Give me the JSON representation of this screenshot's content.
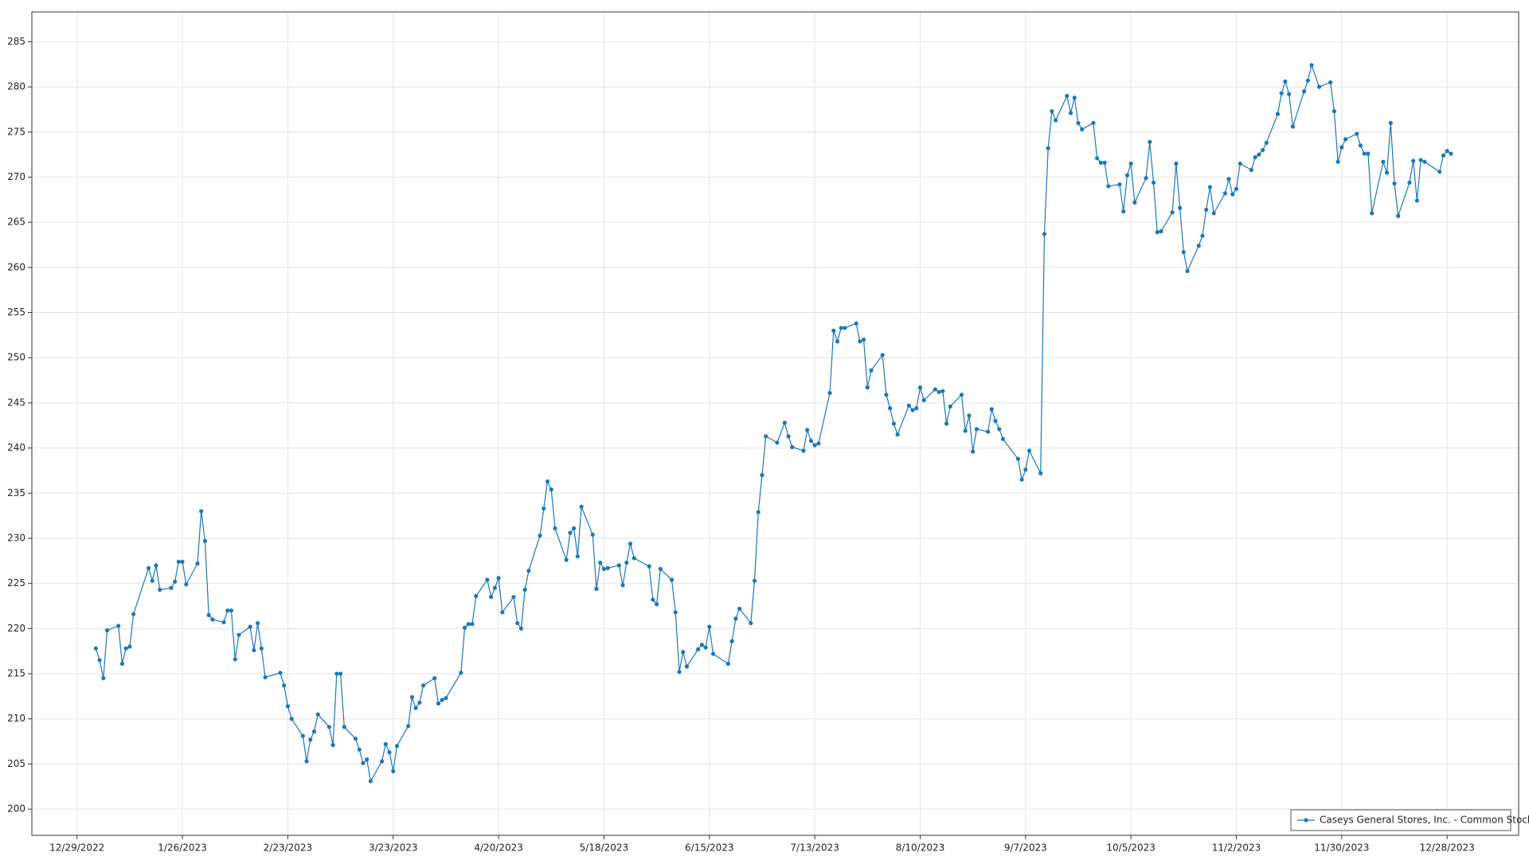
{
  "chart_data": {
    "type": "line",
    "x": [
      "1/3/2023",
      "1/4/2023",
      "1/5/2023",
      "1/6/2023",
      "1/9/2023",
      "1/10/2023",
      "1/11/2023",
      "1/12/2023",
      "1/13/2023",
      "1/17/2023",
      "1/18/2023",
      "1/19/2023",
      "1/20/2023",
      "1/23/2023",
      "1/24/2023",
      "1/25/2023",
      "1/26/2023",
      "1/27/2023",
      "1/30/2023",
      "1/31/2023",
      "2/1/2023",
      "2/2/2023",
      "2/3/2023",
      "2/6/2023",
      "2/7/2023",
      "2/8/2023",
      "2/9/2023",
      "2/10/2023",
      "2/13/2023",
      "2/14/2023",
      "2/15/2023",
      "2/16/2023",
      "2/17/2023",
      "2/21/2023",
      "2/22/2023",
      "2/23/2023",
      "2/24/2023",
      "2/27/2023",
      "2/28/2023",
      "3/1/2023",
      "3/2/2023",
      "3/3/2023",
      "3/6/2023",
      "3/7/2023",
      "3/8/2023",
      "3/9/2023",
      "3/10/2023",
      "3/13/2023",
      "3/14/2023",
      "3/15/2023",
      "3/16/2023",
      "3/17/2023",
      "3/20/2023",
      "3/21/2023",
      "3/22/2023",
      "3/23/2023",
      "3/24/2023",
      "3/27/2023",
      "3/28/2023",
      "3/29/2023",
      "3/30/2023",
      "3/31/2023",
      "4/3/2023",
      "4/4/2023",
      "4/5/2023",
      "4/6/2023",
      "4/10/2023",
      "4/11/2023",
      "4/12/2023",
      "4/13/2023",
      "4/14/2023",
      "4/17/2023",
      "4/18/2023",
      "4/19/2023",
      "4/20/2023",
      "4/21/2023",
      "4/24/2023",
      "4/25/2023",
      "4/26/2023",
      "4/27/2023",
      "4/28/2023",
      "5/1/2023",
      "5/2/2023",
      "5/3/2023",
      "5/4/2023",
      "5/5/2023",
      "5/8/2023",
      "5/9/2023",
      "5/10/2023",
      "5/11/2023",
      "5/12/2023",
      "5/15/2023",
      "5/16/2023",
      "5/17/2023",
      "5/18/2023",
      "5/19/2023",
      "5/22/2023",
      "5/23/2023",
      "5/24/2023",
      "5/25/2023",
      "5/26/2023",
      "5/30/2023",
      "5/31/2023",
      "6/1/2023",
      "6/2/2023",
      "6/5/2023",
      "6/6/2023",
      "6/7/2023",
      "6/8/2023",
      "6/9/2023",
      "6/12/2023",
      "6/13/2023",
      "6/14/2023",
      "6/15/2023",
      "6/16/2023",
      "6/20/2023",
      "6/21/2023",
      "6/22/2023",
      "6/23/2023",
      "6/26/2023",
      "6/27/2023",
      "6/28/2023",
      "6/29/2023",
      "6/30/2023",
      "7/3/2023",
      "7/5/2023",
      "7/6/2023",
      "7/7/2023",
      "7/10/2023",
      "7/11/2023",
      "7/12/2023",
      "7/13/2023",
      "7/14/2023",
      "7/17/2023",
      "7/18/2023",
      "7/19/2023",
      "7/20/2023",
      "7/21/2023",
      "7/24/2023",
      "7/25/2023",
      "7/26/2023",
      "7/27/2023",
      "7/28/2023",
      "7/31/2023",
      "8/1/2023",
      "8/2/2023",
      "8/3/2023",
      "8/4/2023",
      "8/7/2023",
      "8/8/2023",
      "8/9/2023",
      "8/10/2023",
      "8/11/2023",
      "8/14/2023",
      "8/15/2023",
      "8/16/2023",
      "8/17/2023",
      "8/18/2023",
      "8/21/2023",
      "8/22/2023",
      "8/23/2023",
      "8/24/2023",
      "8/25/2023",
      "8/28/2023",
      "8/29/2023",
      "8/30/2023",
      "8/31/2023",
      "9/1/2023",
      "9/5/2023",
      "9/6/2023",
      "9/7/2023",
      "9/8/2023",
      "9/11/2023",
      "9/12/2023",
      "9/13/2023",
      "9/14/2023",
      "9/15/2023",
      "9/18/2023",
      "9/19/2023",
      "9/20/2023",
      "9/21/2023",
      "9/22/2023",
      "9/25/2023",
      "9/26/2023",
      "9/27/2023",
      "9/28/2023",
      "9/29/2023",
      "10/2/2023",
      "10/3/2023",
      "10/4/2023",
      "10/5/2023",
      "10/6/2023",
      "10/9/2023",
      "10/10/2023",
      "10/11/2023",
      "10/12/2023",
      "10/13/2023",
      "10/16/2023",
      "10/17/2023",
      "10/18/2023",
      "10/19/2023",
      "10/20/2023",
      "10/23/2023",
      "10/24/2023",
      "10/25/2023",
      "10/26/2023",
      "10/27/2023",
      "10/30/2023",
      "10/31/2023",
      "11/1/2023",
      "11/2/2023",
      "11/3/2023",
      "11/6/2023",
      "11/7/2023",
      "11/8/2023",
      "11/9/2023",
      "11/10/2023",
      "11/13/2023",
      "11/14/2023",
      "11/15/2023",
      "11/16/2023",
      "11/17/2023",
      "11/20/2023",
      "11/21/2023",
      "11/22/2023",
      "11/24/2023",
      "11/27/2023",
      "11/28/2023",
      "11/29/2023",
      "11/30/2023",
      "12/1/2023",
      "12/4/2023",
      "12/5/2023",
      "12/6/2023",
      "12/7/2023",
      "12/8/2023",
      "12/11/2023",
      "12/12/2023",
      "12/13/2023",
      "12/14/2023",
      "12/15/2023",
      "12/18/2023",
      "12/19/2023",
      "12/20/2023",
      "12/21/2023",
      "12/22/2023",
      "12/26/2023",
      "12/27/2023",
      "12/28/2023",
      "12/29/2023"
    ],
    "series": [
      {
        "name": "Caseys General Stores, Inc. - Common Stock",
        "color": "#1f77b4",
        "values": [
          217.8,
          216.5,
          214.5,
          219.8,
          220.3,
          216.1,
          217.8,
          218,
          221.6,
          226.7,
          225.3,
          227,
          224.3,
          224.5,
          225.2,
          227.4,
          227.4,
          224.9,
          227.2,
          233,
          229.7,
          221.5,
          221,
          220.7,
          222,
          222,
          216.6,
          219.3,
          220.2,
          217.6,
          220.6,
          217.8,
          214.6,
          215.1,
          213.7,
          211.4,
          210,
          208.1,
          205.3,
          207.7,
          208.6,
          210.5,
          209.1,
          207.1,
          215,
          215,
          209.1,
          207.8,
          206.6,
          205.1,
          205.5,
          203.1,
          205.3,
          207.2,
          206.3,
          204.2,
          207,
          209.2,
          212.4,
          211.2,
          211.8,
          213.7,
          214.5,
          211.7,
          212.1,
          212.3,
          215.1,
          220.1,
          220.5,
          220.5,
          223.6,
          225.4,
          223.5,
          224.5,
          225.6,
          221.8,
          223.5,
          220.6,
          220,
          224.3,
          226.4,
          230.3,
          233.3,
          236.3,
          235.4,
          231.1,
          227.6,
          230.6,
          231.1,
          228,
          233.5,
          230.4,
          224.4,
          227.3,
          226.6,
          226.7,
          227,
          224.8,
          227.3,
          229.4,
          227.8,
          226.9,
          223.2,
          222.7,
          226.6,
          225.4,
          221.8,
          215.2,
          217.4,
          215.8,
          217.7,
          218.2,
          217.9,
          220.2,
          217.2,
          216.1,
          218.6,
          221.1,
          222.2,
          220.6,
          225.3,
          232.9,
          237,
          241.3,
          240.6,
          242.8,
          241.3,
          240.1,
          239.7,
          242,
          240.8,
          240.3,
          240.5,
          246.1,
          253,
          251.8,
          253.3,
          253.3,
          253.8,
          251.8,
          252,
          246.7,
          248.6,
          250.3,
          245.9,
          244.4,
          242.7,
          241.5,
          244.7,
          244.2,
          244.4,
          246.7,
          245.3,
          246.5,
          246.2,
          246.3,
          242.7,
          244.6,
          245.9,
          241.9,
          243.6,
          239.6,
          242.1,
          241.8,
          244.3,
          243,
          242.1,
          241,
          238.8,
          236.5,
          237.6,
          239.7,
          237.2,
          263.7,
          273.2,
          277.3,
          276.3,
          279,
          277.1,
          278.8,
          276,
          275.3,
          276,
          272.1,
          271.6,
          271.6,
          269,
          269.2,
          266.2,
          270.2,
          271.5,
          267.2,
          269.9,
          273.9,
          269.4,
          263.9,
          264,
          266.1,
          271.5,
          266.6,
          261.7,
          259.6,
          262.4,
          263.5,
          266.4,
          268.9,
          266,
          268.2,
          269.8,
          268.1,
          268.7,
          271.5,
          270.8,
          272.2,
          272.5,
          273,
          273.8,
          277,
          279.3,
          280.6,
          279.2,
          275.6,
          279.5,
          280.7,
          282.4,
          280,
          280.5,
          277.3,
          271.7,
          273.3,
          274.2,
          274.8,
          273.5,
          272.6,
          272.6,
          266,
          271.7,
          270.5,
          276,
          269.3,
          265.7,
          269.4,
          271.8,
          267.4,
          271.9,
          271.7,
          270.6,
          272.4,
          272.9,
          272.6
        ]
      }
    ],
    "xlim": [
      "12/17/2022",
      "1/16/2024"
    ],
    "xticks": [
      "12/29/2022",
      "1/26/2023",
      "2/23/2023",
      "3/23/2023",
      "4/20/2023",
      "5/18/2023",
      "6/15/2023",
      "7/13/2023",
      "8/10/2023",
      "9/7/2023",
      "10/5/2023",
      "11/2/2023",
      "11/30/2023",
      "12/28/2023"
    ],
    "ylim": [
      197.1,
      288.3
    ],
    "yticks": [
      200,
      205,
      210,
      215,
      220,
      225,
      230,
      235,
      240,
      245,
      250,
      255,
      260,
      265,
      270,
      275,
      280,
      285
    ],
    "grid": true,
    "legend": "lower right",
    "markers": true
  }
}
